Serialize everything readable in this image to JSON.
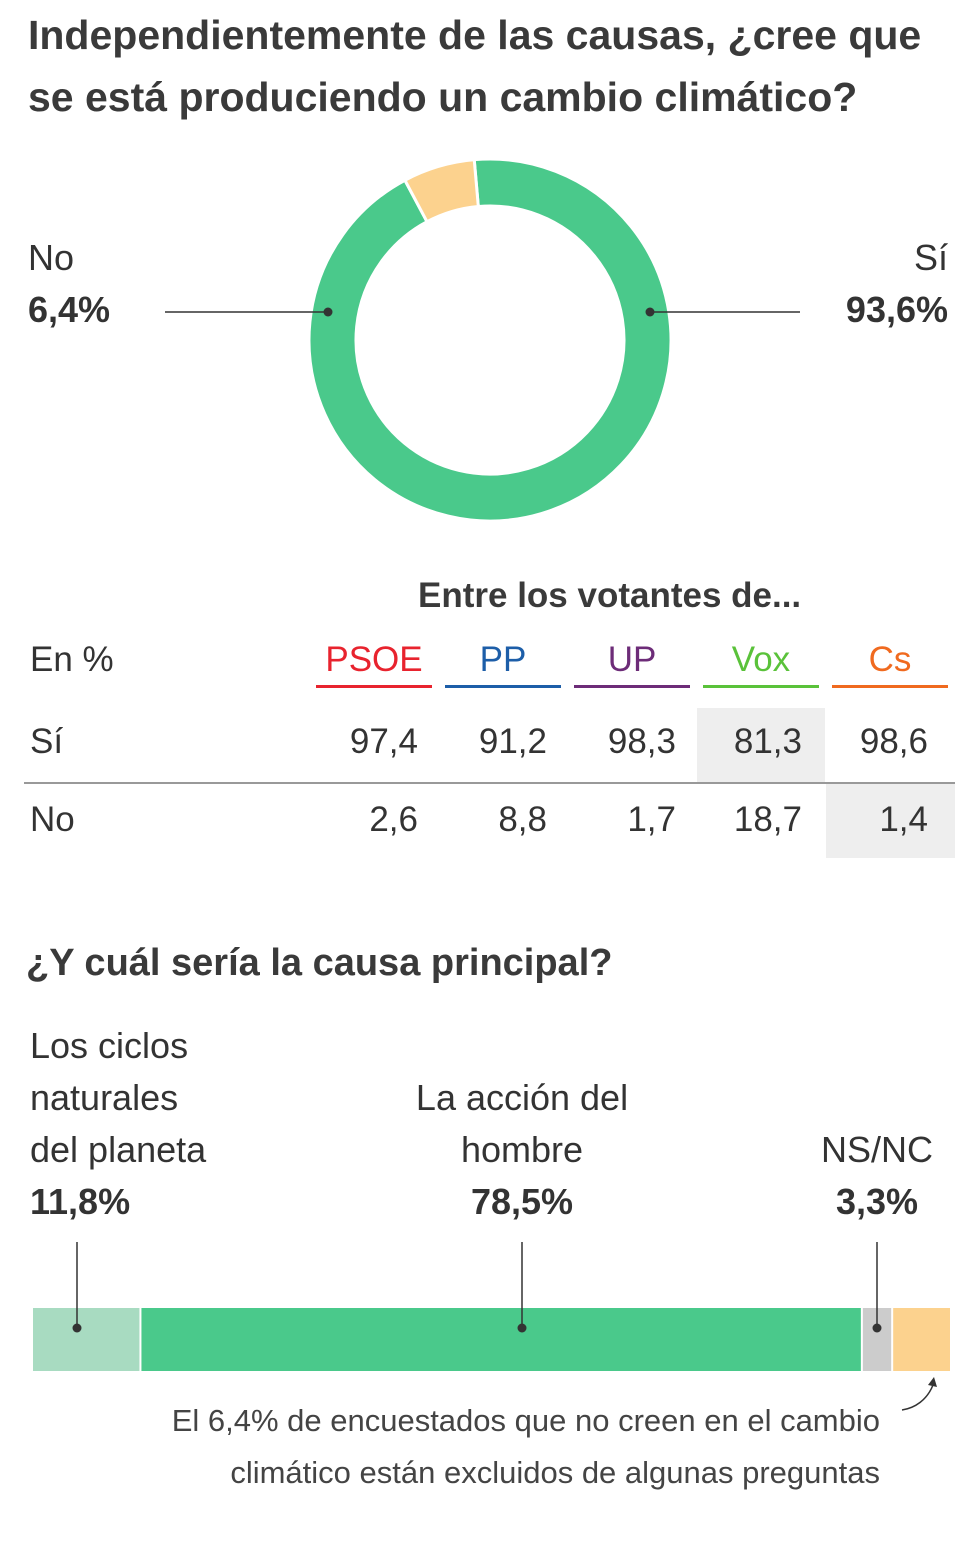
{
  "title": "Independientemente de las causas, ¿cree que se está produciendo un cambio climático?",
  "colors": {
    "yes": "#4ac98b",
    "no": "#fcd28e",
    "natural": "#a8dbc1",
    "nsnc": "#cccccc",
    "text": "#333333"
  },
  "chart_data": [
    {
      "type": "pie",
      "title": "Independientemente de las causas, ¿cree que se está produciendo un cambio climático?",
      "slices": [
        {
          "label": "Sí",
          "value": 93.6,
          "value_label": "93,6%",
          "color": "#4ac98b"
        },
        {
          "label": "No",
          "value": 6.4,
          "value_label": "6,4%",
          "color": "#fcd28e"
        }
      ]
    },
    {
      "type": "table",
      "title": "Entre los votantes de...",
      "unit_label": "En %",
      "columns": [
        {
          "name": "PSOE",
          "color": "#e8232e"
        },
        {
          "name": "PP",
          "color": "#1d5ea8"
        },
        {
          "name": "UP",
          "color": "#6d2c78"
        },
        {
          "name": "Vox",
          "color": "#5ac23a"
        },
        {
          "name": "Cs",
          "color": "#f06a1f"
        }
      ],
      "rows": [
        {
          "label": "Sí",
          "values": [
            "97,4",
            "91,2",
            "98,3",
            "81,3",
            "98,6"
          ]
        },
        {
          "label": "No",
          "values": [
            "2,6",
            "8,8",
            "1,7",
            "18,7",
            "1,4"
          ]
        }
      ]
    },
    {
      "type": "bar",
      "title": "¿Y cuál sería la causa principal?",
      "stacked": true,
      "segments": [
        {
          "label": "Los ciclos naturales del planeta",
          "value": 11.8,
          "value_label": "11,8%",
          "color": "#a8dbc1"
        },
        {
          "label": "La acción del hombre",
          "value": 78.5,
          "value_label": "78,5%",
          "color": "#4ac98b"
        },
        {
          "label": "NS/NC",
          "value": 3.3,
          "value_label": "3,3%",
          "color": "#cccccc"
        },
        {
          "label": "Excluidos",
          "value": 6.4,
          "color": "#fcd28e"
        }
      ],
      "note": "El 6,4% de encuestados que no creen en el cambio climático están excluidos de algunas preguntas"
    }
  ],
  "donut": {
    "no_label": "No",
    "no_pct": "6,4%",
    "yes_label": "Sí",
    "yes_pct": "93,6%"
  },
  "table": {
    "title": "Entre los votantes de...",
    "unit_label": "En %",
    "headers": [
      "PSOE",
      "PP",
      "UP",
      "Vox",
      "Cs"
    ],
    "row_labels": [
      "Sí",
      "No"
    ]
  },
  "causes": {
    "title": "¿Y cuál sería la causa principal?",
    "natural_line1": "Los ciclos",
    "natural_line2": "naturales",
    "natural_line3": "del planeta",
    "natural_pct": "11,8%",
    "human_line1": "La acción del",
    "human_line2": "hombre",
    "human_pct": "78,5%",
    "nsnc_label": "NS/NC",
    "nsnc_pct": "3,3%",
    "note_line1": "El 6,4% de encuestados que no creen en el cambio",
    "note_line2": "climático están excluidos de algunas preguntas"
  }
}
